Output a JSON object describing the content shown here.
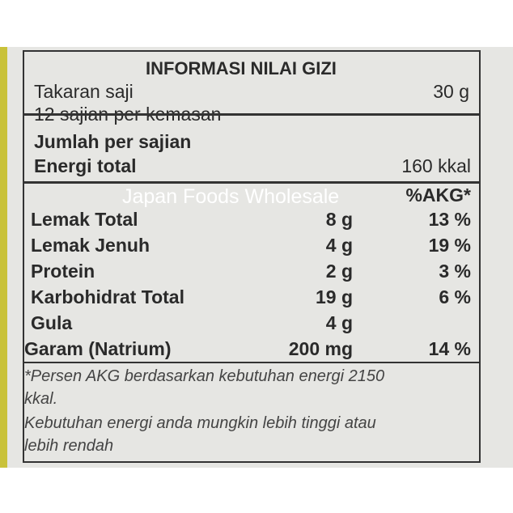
{
  "title": "INFORMASI NILAI GIZI",
  "serving": {
    "label": "Takaran saji",
    "value": "30  g",
    "servings": "12 sajian per kemasan"
  },
  "per_serving": {
    "label": "Jumlah per sajian",
    "energy_label": "Energi total",
    "energy_value": "160 kkal"
  },
  "akg_header": "%AKG*",
  "nutrients": [
    {
      "name": "Lemak Total",
      "amount": "8 g",
      "akg": "13 %"
    },
    {
      "name": "Lemak Jenuh",
      "amount": "4 g",
      "akg": "19 %"
    },
    {
      "name": "Protein",
      "amount": "2 g",
      "akg": "3 %"
    },
    {
      "name": "Karbohidrat Total",
      "amount": "19 g",
      "akg": "6 %"
    },
    {
      "name": "Gula",
      "amount": "4 g",
      "akg": ""
    },
    {
      "name": "Garam (Natrium)",
      "amount": "200 mg",
      "akg": "14 %"
    }
  ],
  "footnote": {
    "line1": "*Persen AKG berdasarkan kebutuhan energi 2150",
    "line2": "kkal.",
    "line3": "Kebutuhan energi anda mungkin lebih tinggi atau",
    "line4": "lebih rendah"
  },
  "watermark": "Japan Foods Wholesale"
}
